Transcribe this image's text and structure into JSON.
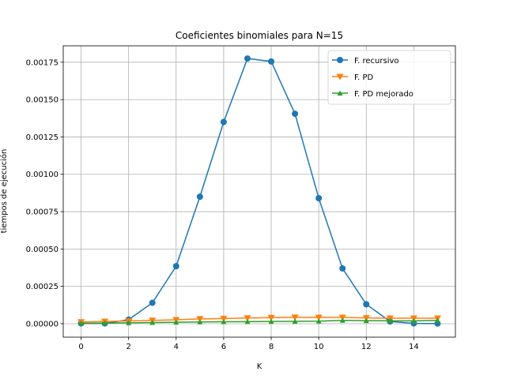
{
  "chart_data": {
    "type": "line",
    "title": "Coeficientes binomiales para N=15",
    "xlabel": "K",
    "ylabel": "tiempos de ejecución",
    "xlim": [
      -0.75,
      15.75
    ],
    "ylim": [
      -9e-05,
      0.00186
    ],
    "xticks": [
      0,
      2,
      4,
      6,
      8,
      10,
      12,
      14
    ],
    "yticks": [
      0.0,
      0.00025,
      0.0005,
      0.00075,
      0.001,
      0.00125,
      0.0015,
      0.00175
    ],
    "xtick_labels": [
      "0",
      "2",
      "4",
      "6",
      "8",
      "10",
      "12",
      "14"
    ],
    "ytick_labels": [
      "0.00000",
      "0.00025",
      "0.00050",
      "0.00075",
      "0.00100",
      "0.00125",
      "0.00150",
      "0.00175"
    ],
    "grid": true,
    "legend_position": "top-right",
    "x": [
      0,
      1,
      2,
      3,
      4,
      5,
      6,
      7,
      8,
      9,
      10,
      11,
      12,
      13,
      14,
      15
    ],
    "series": [
      {
        "name": "F. recursivo",
        "color": "#1f77b4",
        "marker": "circle",
        "values": [
          2e-06,
          2e-06,
          2.7e-05,
          0.00014,
          0.000385,
          0.00085,
          0.00135,
          0.001775,
          0.001755,
          0.001405,
          0.00084,
          0.00037,
          0.00013,
          1.5e-05,
          2e-06,
          1e-06
        ]
      },
      {
        "name": "F. PD",
        "color": "#ff7f0e",
        "marker": "triangle-down",
        "values": [
          1.2e-05,
          1.5e-05,
          1.8e-05,
          2.2e-05,
          2.6e-05,
          3.2e-05,
          3.4e-05,
          3.8e-05,
          4.1e-05,
          4.3e-05,
          4.2e-05,
          4.2e-05,
          3.9e-05,
          3.7e-05,
          3.7e-05,
          3.7e-05
        ]
      },
      {
        "name": "F. PD mejorado",
        "color": "#2ca02c",
        "marker": "triangle-up",
        "values": [
          3e-06,
          4e-06,
          6e-06,
          8e-06,
          1e-05,
          1.2e-05,
          1.3e-05,
          1.4e-05,
          1.5e-05,
          1.6e-05,
          1.7e-05,
          2.2e-05,
          2e-05,
          1.9e-05,
          1.9e-05,
          2.2e-05
        ]
      }
    ]
  }
}
